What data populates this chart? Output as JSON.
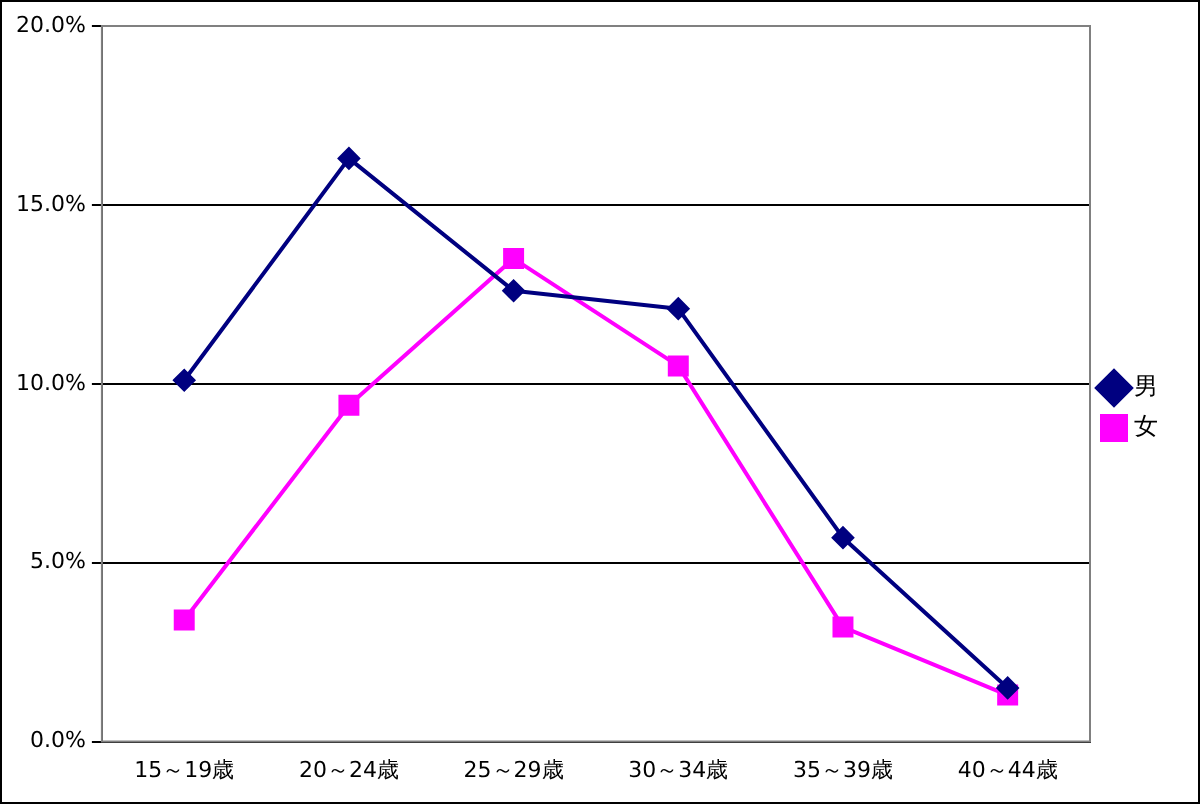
{
  "chart_data": {
    "type": "line",
    "categories": [
      "15～19歳",
      "20～24歳",
      "25～29歳",
      "30～34歳",
      "35～39歳",
      "40～44歳"
    ],
    "series": [
      {
        "name": "男",
        "color": "#000080",
        "marker": "diamond",
        "values": [
          10.1,
          16.3,
          12.6,
          12.1,
          5.7,
          1.5
        ]
      },
      {
        "name": "女",
        "color": "#ff00ff",
        "marker": "square",
        "values": [
          3.4,
          9.4,
          13.5,
          10.5,
          3.2,
          1.3
        ]
      }
    ],
    "ylim": [
      0,
      20
    ],
    "yticks": [
      {
        "value": 0,
        "label": "0.0%"
      },
      {
        "value": 5,
        "label": "5.0%"
      },
      {
        "value": 10,
        "label": "10.0%"
      },
      {
        "value": 15,
        "label": "15.0%"
      },
      {
        "value": 20,
        "label": "20.0%"
      }
    ],
    "grid": "y",
    "legend": "right"
  }
}
